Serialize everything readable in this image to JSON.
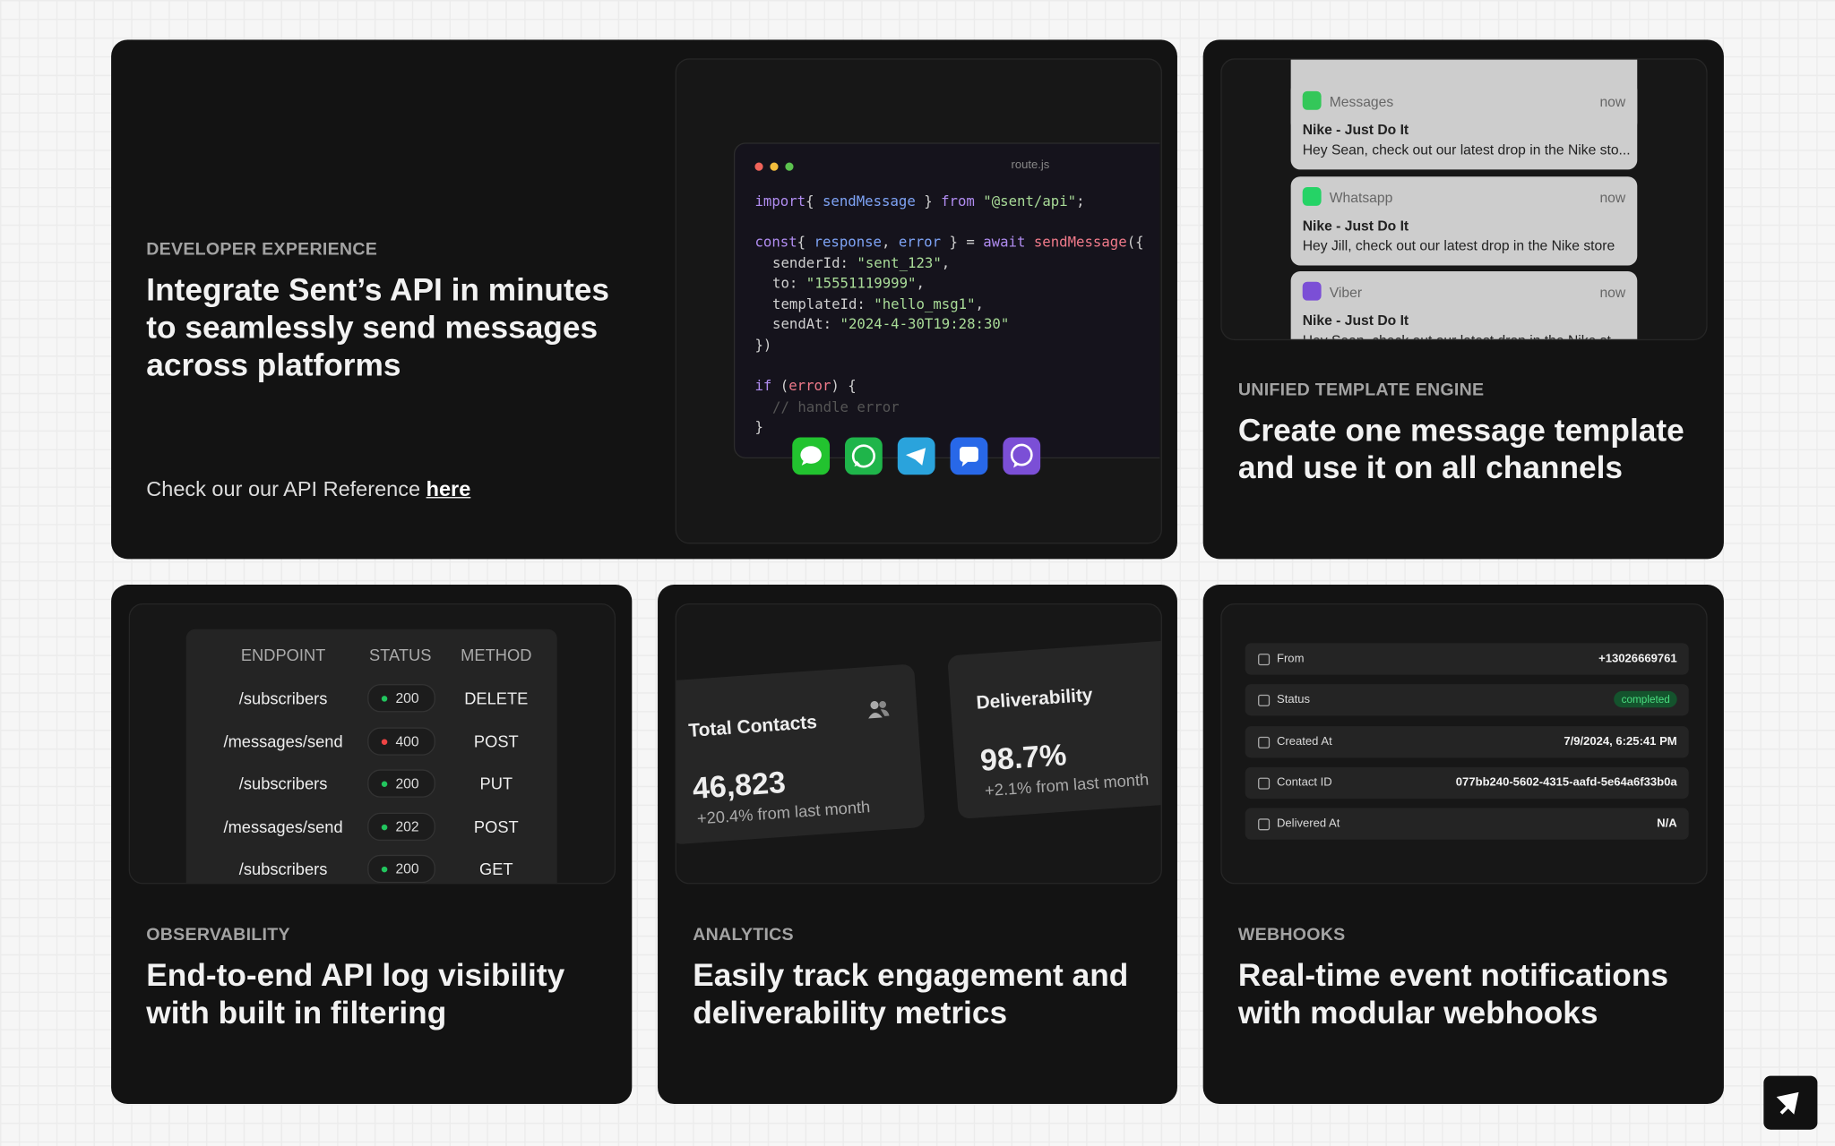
{
  "developer": {
    "label": "DEVELOPER EXPERIENCE",
    "title": "Integrate Sent’s API in minutes to seamlessly send messages across platforms",
    "link_text": "Check our our API Reference",
    "link": "here",
    "file": "route.js",
    "code": [
      [
        "import",
        "{ ",
        "sendMessage",
        " } ",
        "from",
        " ",
        "\"@sent/api\"",
        ";"
      ],
      [
        "const",
        "{ ",
        "response",
        ", ",
        "error",
        " } = ",
        "await",
        " ",
        "sendMessage",
        "({"
      ],
      [
        "senderId",
        ": ",
        "\"sent_123\"",
        ","
      ],
      [
        "to",
        ": ",
        "\"15551119999\"",
        ","
      ],
      [
        "templateId",
        ": ",
        "\"hello_msg1\"",
        ","
      ],
      [
        "sendAt",
        ": ",
        "\"2024-4-30T19:28:30\""
      ],
      [
        "})"
      ],
      [
        "if",
        " (",
        "error",
        ") {"
      ],
      [
        "// handle error"
      ],
      [
        "}"
      ]
    ]
  },
  "template": {
    "label": "UNIFIED TEMPLATE ENGINE",
    "title": "Create one message template and use it on all channels",
    "notifications": [
      {
        "app": "Messages",
        "time": "now",
        "title": "Nike - Just Do It",
        "body": "Hey Sean, check out our latest drop in the Nike sto..."
      },
      {
        "app": "Whatsapp",
        "time": "now",
        "title": "Nike - Just Do It",
        "body": "Hey Jill, check out our latest drop in the Nike store"
      },
      {
        "app": "Viber",
        "time": "now",
        "title": "Nike - Just Do It",
        "body": "Hey Sean, check out our latest drop in the Nike st..."
      }
    ]
  },
  "observability": {
    "label": "OBSERVABILITY",
    "title": "End-to-end API log visibility with built in filtering",
    "headers": [
      "ENDPOINT",
      "STATUS",
      "METHOD"
    ],
    "rows": [
      [
        "/subscribers",
        200,
        "DELETE"
      ],
      [
        "/messages/send",
        400,
        "POST"
      ],
      [
        "/subscribers",
        200,
        "PUT"
      ],
      [
        "/messages/send",
        202,
        "POST"
      ],
      [
        "/subscribers",
        200,
        "GET"
      ]
    ]
  },
  "analytics": {
    "label": "ANALYTICS",
    "title": "Easily track engagement and deliverability metrics",
    "contacts": {
      "label": "Total Contacts",
      "value": "46,823",
      "change": "+20.4% from last month"
    },
    "deliverability": {
      "label": "Deliverability",
      "value": "98.7%",
      "change": "+2.1% from last month"
    }
  },
  "webhooks": {
    "label": "WEBHOOKS",
    "title": "Real-time event notifications with modular webhooks",
    "fields": [
      {
        "label": "From",
        "value": "+13026669761"
      },
      {
        "label": "Status",
        "value": "completed"
      },
      {
        "label": "Created At",
        "value": "7/9/2024, 6:25:41 PM"
      },
      {
        "label": "Contact ID",
        "value": "077bb240-5602-4315-aafd-5e64a6f33b0a"
      },
      {
        "label": "Delivered At",
        "value": "N/A"
      }
    ]
  }
}
